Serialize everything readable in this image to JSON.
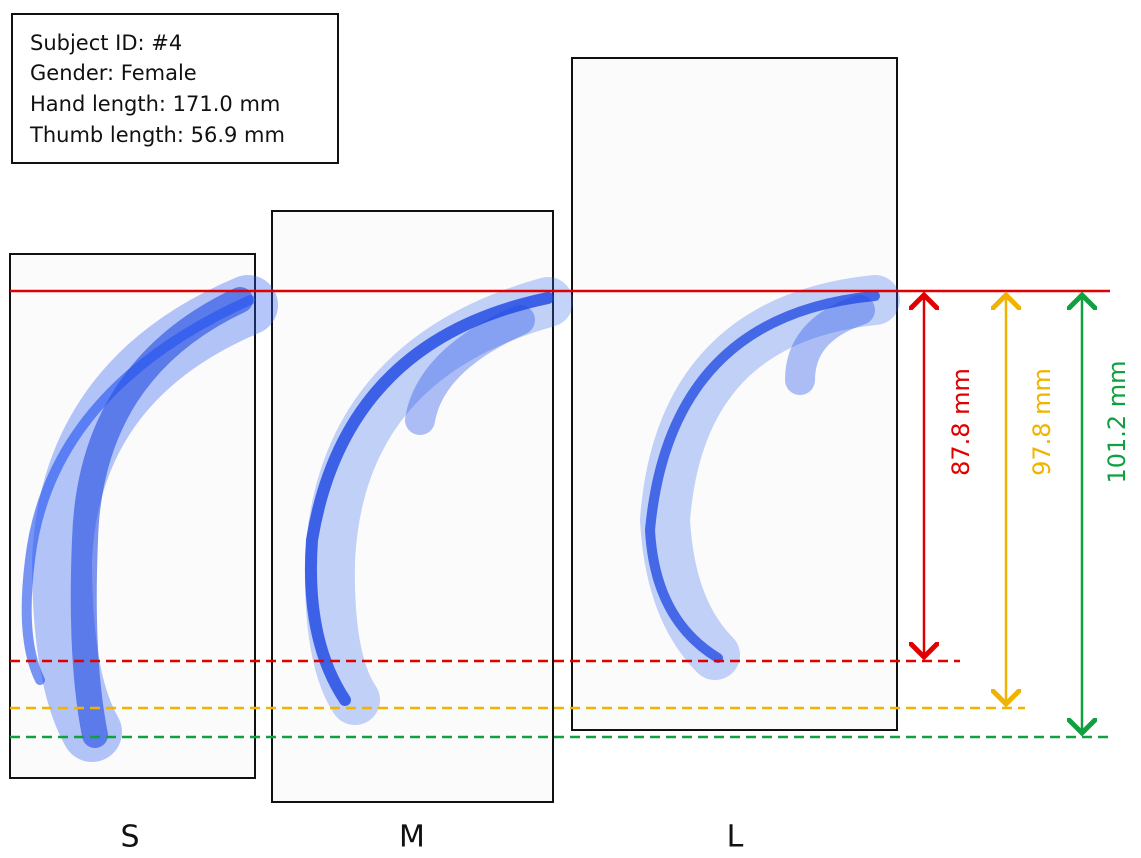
{
  "info": {
    "lines": [
      "Subject ID: #4",
      "Gender: Female",
      "Hand length: 171.0 mm",
      "Thumb length: 56.9 mm"
    ]
  },
  "panels": [
    {
      "label": "S"
    },
    {
      "label": "M"
    },
    {
      "label": "L"
    }
  ],
  "measurements": [
    {
      "label": "87.8 mm"
    },
    {
      "label": "97.8 mm"
    },
    {
      "label": "101.2 mm"
    }
  ]
}
